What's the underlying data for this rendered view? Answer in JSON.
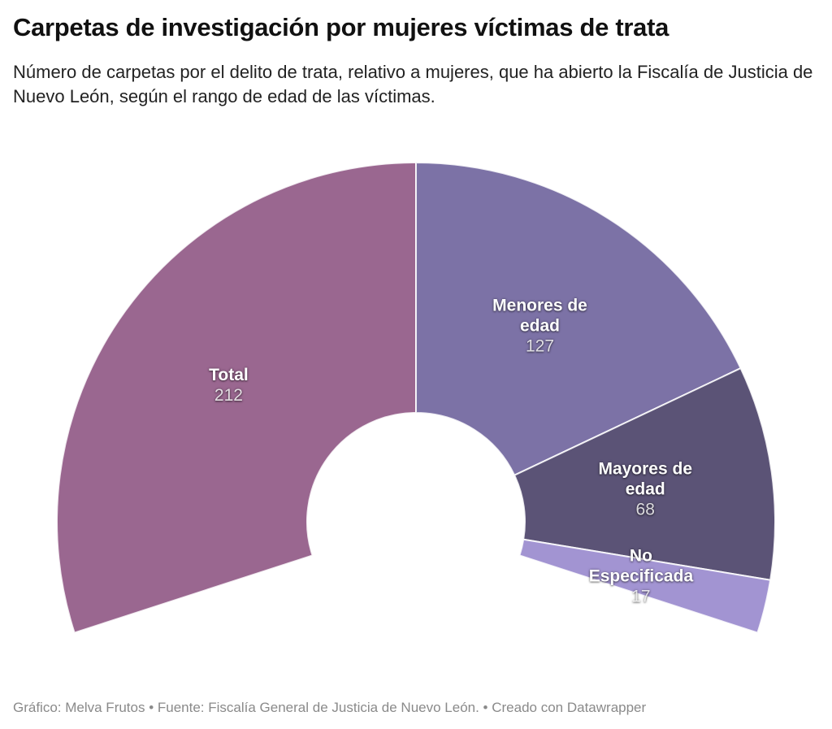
{
  "header": {
    "title": "Carpetas de investigación por mujeres víctimas de trata",
    "subtitle": "Número de carpetas por el delito de trata, relativo a mujeres, que ha abierto la Fiscalía de Justicia de Nuevo León, según el rango de edad de las víctimas."
  },
  "footer": {
    "text": "Gráfico: Melva Frutos • Fuente: Fiscalía General de Justicia de Nuevo León. • Creado con Datawrapper"
  },
  "chart_data": {
    "type": "pie",
    "variant": "half-donut-gauge",
    "title": "Carpetas de investigación por mujeres víctimas de trata",
    "span_deg": 216,
    "start_deg": -108,
    "label_position": "inside",
    "legend": "none",
    "series": [
      {
        "label": "Total",
        "value": 212,
        "color": "#9a6790"
      },
      {
        "label": "Menores de edad",
        "value": 127,
        "color": "#7c72a6"
      },
      {
        "label": "Mayores de edad",
        "value": 68,
        "color": "#5b5376"
      },
      {
        "label": "No Especificada",
        "value": 17,
        "color": "#a294d2"
      }
    ],
    "divider_color": "#ffffff",
    "value_text_color": "#e8e8e8"
  }
}
